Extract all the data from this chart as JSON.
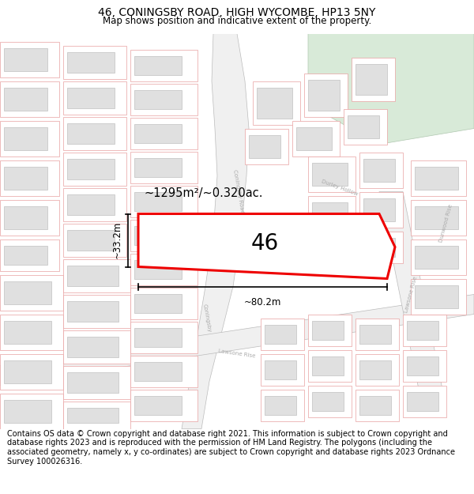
{
  "title": "46, CONINGSBY ROAD, HIGH WYCOMBE, HP13 5NY",
  "subtitle": "Map shows position and indicative extent of the property.",
  "footer": "Contains OS data © Crown copyright and database right 2021. This information is subject to Crown copyright and database rights 2023 and is reproduced with the permission of HM Land Registry. The polygons (including the associated geometry, namely x, y co-ordinates) are subject to Crown copyright and database rights 2023 Ordnance Survey 100026316.",
  "title_fontsize": 10,
  "subtitle_fontsize": 8.5,
  "footer_fontsize": 7,
  "area_label": "~1295m²/~0.320ac.",
  "property_number": "46",
  "width_label": "~80.2m",
  "height_label": "~33.2m",
  "red_color": "#ee0000",
  "map_bg": "#ffffff",
  "plot_line_color": "#e8a0a0",
  "building_color": "#e0e0e0",
  "building_stroke": "#c0c0c0",
  "road_label_color": "#aaaaaa",
  "green_area_color": "#d8ead8",
  "green_area_stroke": "#b0c8b0"
}
